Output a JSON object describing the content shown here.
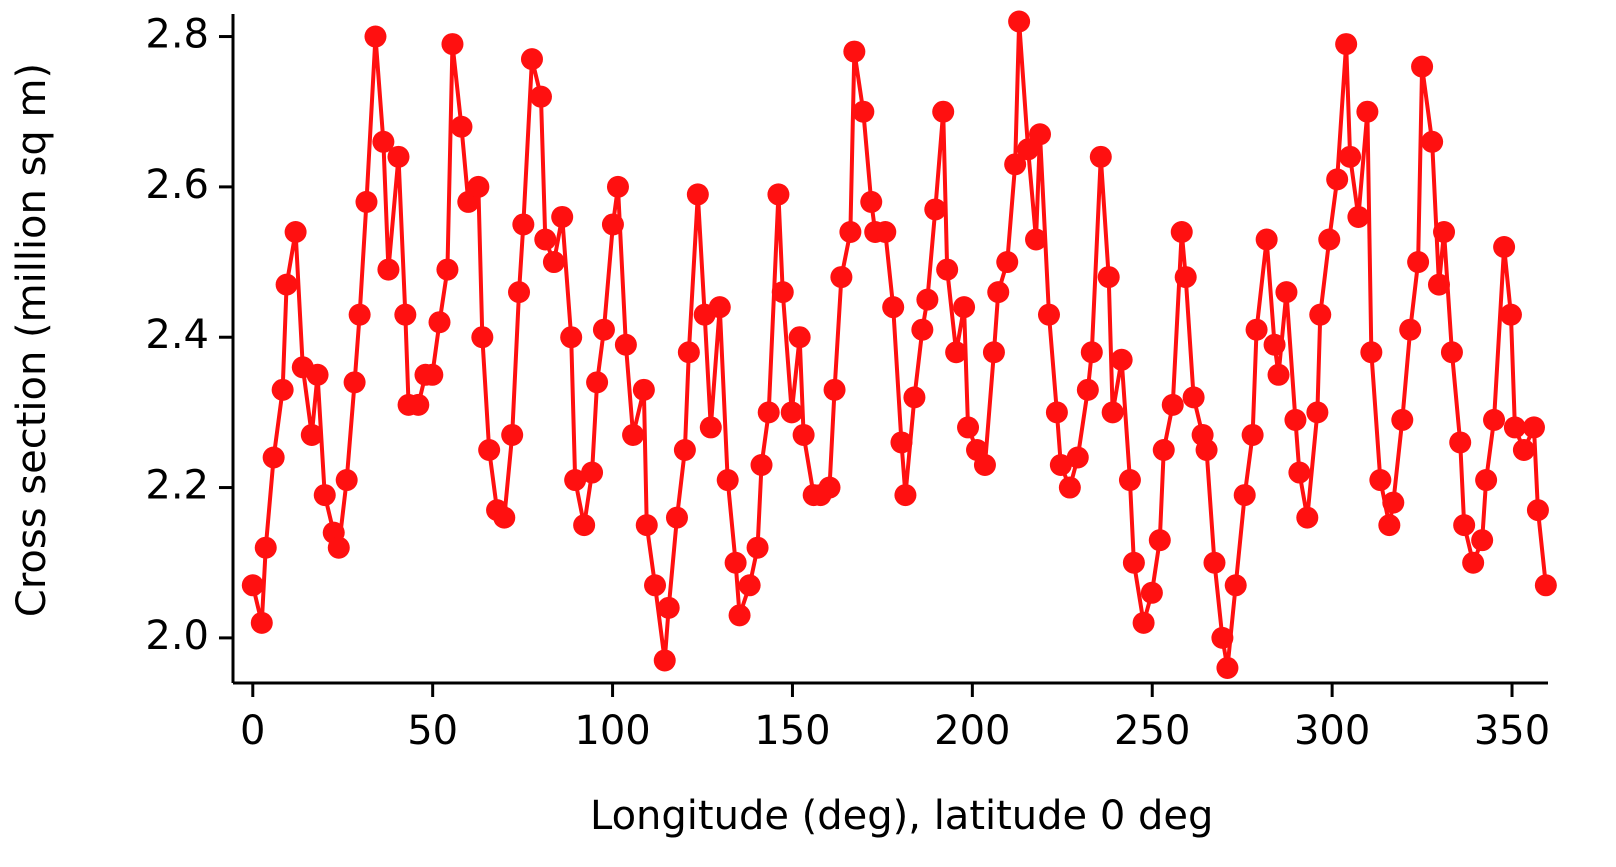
{
  "chart_data": {
    "type": "line",
    "xlabel": "Longitude (deg), latitude 0 deg",
    "ylabel": "Cross section (million sq m)",
    "color": "#ff1010",
    "x": [
      0,
      2.5,
      3.6,
      5.8,
      8.3,
      9.4,
      11.9,
      13.9,
      16.4,
      18.0,
      20.0,
      22.5,
      23.9,
      26.1,
      28.3,
      29.7,
      31.6,
      34.1,
      36.3,
      37.7,
      40.5,
      42.4,
      43.3,
      46.0,
      48.0,
      49.9,
      51.9,
      54.1,
      55.5,
      58.0,
      59.9,
      62.7,
      63.8,
      65.7,
      67.9,
      69.9,
      72.1,
      74.0,
      75.2,
      77.6,
      80.1,
      81.3,
      83.7,
      86.0,
      88.5,
      89.6,
      92.1,
      94.3,
      95.7,
      97.6,
      100.1,
      101.5,
      103.7,
      105.7,
      108.7,
      109.5,
      111.8,
      114.5,
      115.6,
      117.9,
      120.1,
      121.2,
      123.7,
      125.6,
      127.3,
      129.8,
      132.0,
      134.2,
      135.3,
      138.1,
      140.3,
      141.4,
      143.4,
      146.1,
      147.3,
      149.8,
      152.0,
      153.1,
      155.9,
      157.8,
      160.3,
      161.7,
      163.6,
      166.1,
      167.2,
      169.7,
      171.9,
      173.0,
      175.8,
      178.0,
      180.3,
      181.4,
      183.9,
      186.1,
      187.5,
      189.7,
      191.9,
      193.0,
      195.5,
      197.7,
      198.8,
      201.3,
      203.5,
      206.0,
      207.2,
      209.7,
      211.9,
      213.0,
      215.5,
      217.7,
      218.8,
      221.3,
      223.5,
      224.6,
      227.1,
      229.3,
      232.1,
      233.2,
      235.7,
      237.9,
      239.0,
      241.5,
      243.8,
      244.9,
      247.6,
      249.9,
      252.1,
      253.2,
      255.7,
      258.2,
      259.3,
      261.5,
      264.0,
      265.1,
      267.3,
      269.5,
      270.9,
      273.2,
      275.7,
      277.9,
      279.0,
      281.8,
      284.0,
      285.1,
      287.3,
      289.8,
      290.9,
      293.1,
      295.9,
      296.7,
      299.2,
      301.4,
      303.9,
      305.0,
      307.3,
      309.8,
      310.9,
      313.4,
      315.9,
      317.0,
      319.5,
      321.7,
      323.9,
      325.0,
      327.8,
      329.7,
      331.1,
      333.3,
      335.6,
      336.7,
      339.2,
      341.7,
      342.8,
      345.0,
      347.8,
      349.7,
      350.8,
      353.3,
      356.1,
      357.2,
      359.4
    ],
    "values": [
      2.07,
      2.02,
      2.12,
      2.24,
      2.33,
      2.47,
      2.54,
      2.36,
      2.27,
      2.35,
      2.19,
      2.14,
      2.12,
      2.21,
      2.34,
      2.43,
      2.58,
      2.8,
      2.66,
      2.49,
      2.64,
      2.43,
      2.31,
      2.31,
      2.35,
      2.35,
      2.42,
      2.49,
      2.79,
      2.68,
      2.58,
      2.6,
      2.4,
      2.25,
      2.17,
      2.16,
      2.27,
      2.46,
      2.55,
      2.77,
      2.72,
      2.53,
      2.5,
      2.56,
      2.4,
      2.21,
      2.15,
      2.22,
      2.34,
      2.41,
      2.55,
      2.6,
      2.39,
      2.27,
      2.33,
      2.15,
      2.07,
      1.97,
      2.04,
      2.16,
      2.25,
      2.38,
      2.59,
      2.43,
      2.28,
      2.44,
      2.21,
      2.1,
      2.03,
      2.07,
      2.12,
      2.23,
      2.3,
      2.59,
      2.46,
      2.3,
      2.4,
      2.27,
      2.19,
      2.19,
      2.2,
      2.33,
      2.48,
      2.54,
      2.78,
      2.7,
      2.58,
      2.54,
      2.54,
      2.44,
      2.26,
      2.19,
      2.32,
      2.41,
      2.45,
      2.57,
      2.7,
      2.49,
      2.38,
      2.44,
      2.28,
      2.25,
      2.23,
      2.38,
      2.46,
      2.5,
      2.63,
      2.82,
      2.65,
      2.53,
      2.67,
      2.43,
      2.3,
      2.23,
      2.2,
      2.24,
      2.33,
      2.38,
      2.64,
      2.48,
      2.3,
      2.37,
      2.21,
      2.1,
      2.02,
      2.06,
      2.13,
      2.25,
      2.31,
      2.54,
      2.48,
      2.32,
      2.27,
      2.25,
      2.1,
      2.0,
      1.96,
      2.07,
      2.19,
      2.27,
      2.41,
      2.53,
      2.39,
      2.35,
      2.46,
      2.29,
      2.22,
      2.16,
      2.3,
      2.43,
      2.53,
      2.61,
      2.79,
      2.64,
      2.56,
      2.7,
      2.38,
      2.21,
      2.15,
      2.18,
      2.29,
      2.41,
      2.5,
      2.76,
      2.66,
      2.47,
      2.54,
      2.38,
      2.26,
      2.15,
      2.1,
      2.13,
      2.21,
      2.29,
      2.52,
      2.43,
      2.28,
      2.25,
      2.28,
      2.17,
      2.07
    ],
    "xlim": [
      -5.5,
      360
    ],
    "ylim": [
      1.94,
      2.83
    ],
    "xticks": [
      0,
      50,
      100,
      150,
      200,
      250,
      300,
      350
    ],
    "yticks": [
      {
        "value": 2,
        "label": "2.0"
      },
      2.2,
      2.4,
      2.6,
      {
        "value": 2.8,
        "label": "2.8"
      }
    ]
  }
}
